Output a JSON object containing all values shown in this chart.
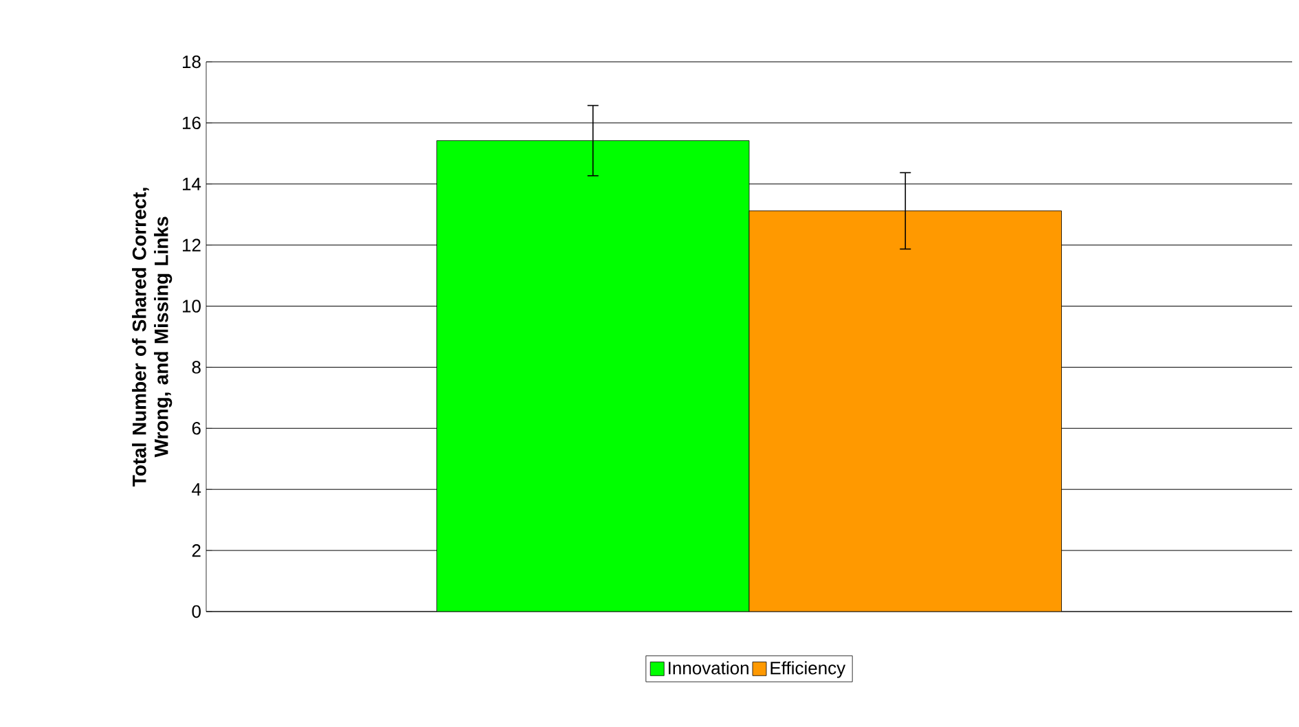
{
  "chart_data": {
    "type": "bar",
    "ylabel": "Total Number of Shared Correct, Wrong, and Missing Links",
    "categories": [
      null
    ],
    "series": [
      {
        "name": "Innovation",
        "color": "#00ff00",
        "values": [
          15.42
        ],
        "errors": [
          1.15
        ]
      },
      {
        "name": "Efficiency",
        "color": "#ff9900",
        "values": [
          13.12
        ],
        "errors": [
          1.25
        ]
      }
    ],
    "ylim": [
      0,
      18
    ],
    "yticks": [
      0,
      2,
      4,
      6,
      8,
      10,
      12,
      14,
      16,
      18
    ],
    "grid": "y",
    "legend": "bottom"
  }
}
